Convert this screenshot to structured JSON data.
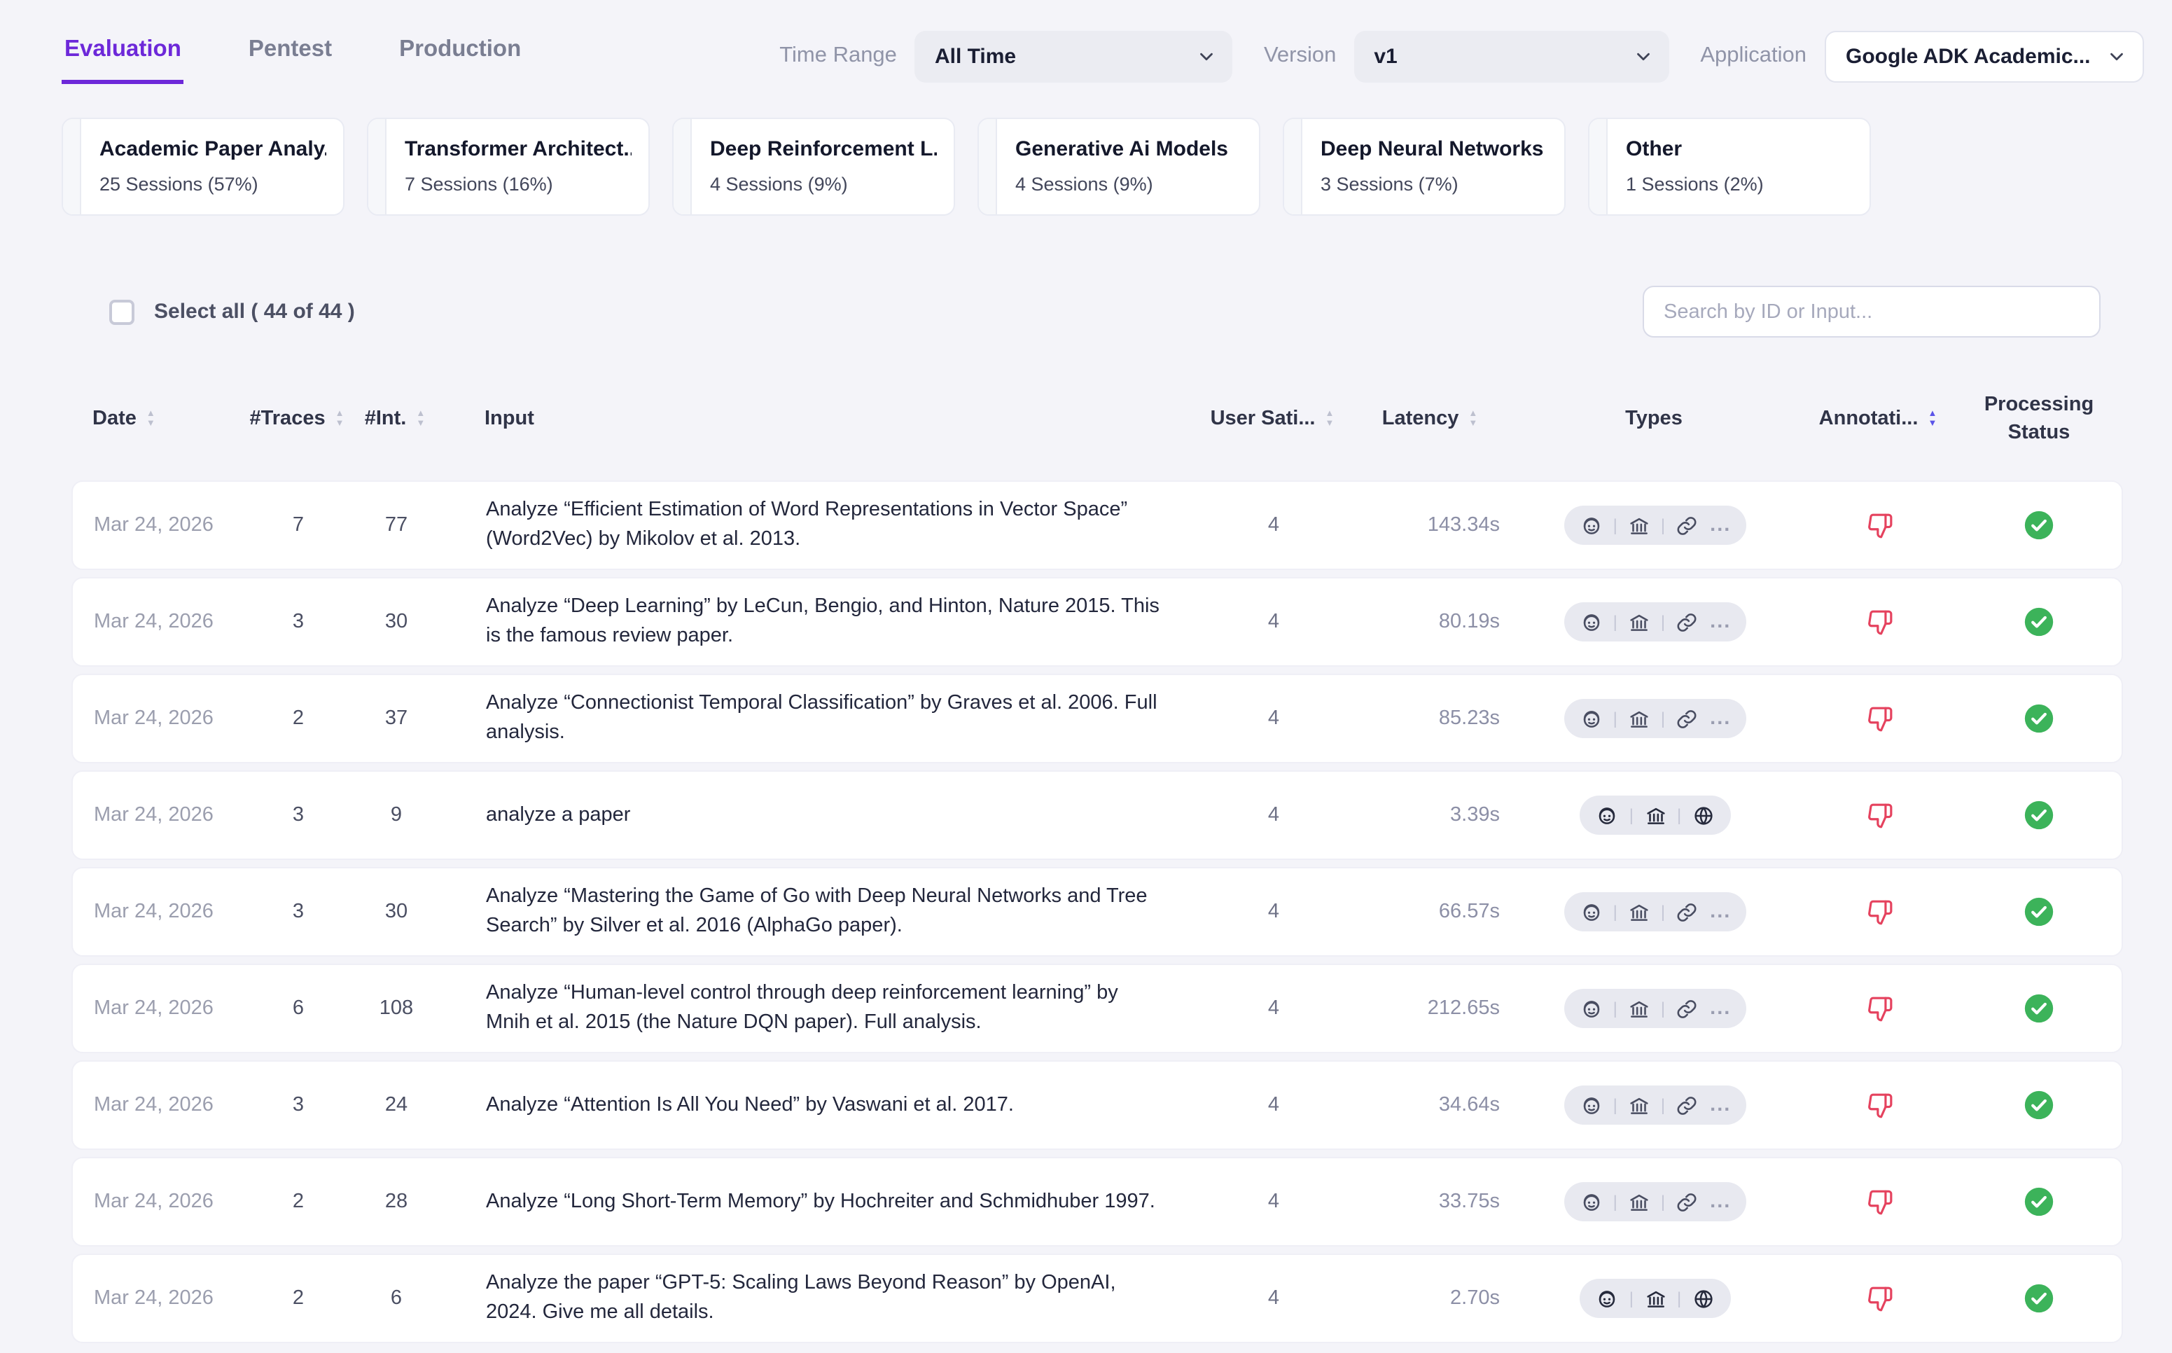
{
  "colors": {
    "accent": "#6d28d9",
    "success": "#3cb35a",
    "danger": "#e5425e",
    "pill_bg": "#e8e9f0"
  },
  "tabs": [
    {
      "label": "Evaluation",
      "active": true
    },
    {
      "label": "Pentest",
      "active": false
    },
    {
      "label": "Production",
      "active": false
    }
  ],
  "filters": {
    "time_range": {
      "label": "Time Range",
      "value": "All Time"
    },
    "version": {
      "label": "Version",
      "value": "v1"
    },
    "application": {
      "label": "Application",
      "value": "Google ADK Academic..."
    }
  },
  "category_cards": [
    {
      "title": "Academic Paper Analy...",
      "subtitle": "25 Sessions (57%)"
    },
    {
      "title": "Transformer Architect...",
      "subtitle": "7 Sessions (16%)"
    },
    {
      "title": "Deep Reinforcement L...",
      "subtitle": "4 Sessions (9%)"
    },
    {
      "title": "Generative Ai Models",
      "subtitle": "4 Sessions (9%)"
    },
    {
      "title": "Deep Neural Networks",
      "subtitle": "3 Sessions (7%)"
    },
    {
      "title": "Other",
      "subtitle": "1 Sessions (2%)"
    }
  ],
  "controls": {
    "select_all_label": "Select all ( 44 of 44 )",
    "select_all_checked": false,
    "search_placeholder": "Search by ID or Input..."
  },
  "table": {
    "columns": [
      {
        "label": "Date",
        "sortable": true,
        "sort_active": false
      },
      {
        "label": "#Traces",
        "sortable": true,
        "sort_active": false
      },
      {
        "label": "#Int.",
        "sortable": true,
        "sort_active": false
      },
      {
        "label": "Input",
        "sortable": false,
        "sort_active": false
      },
      {
        "label": "User Sati...",
        "sortable": true,
        "sort_active": false
      },
      {
        "label": "Latency",
        "sortable": true,
        "sort_active": false
      },
      {
        "label": "Types",
        "sortable": false,
        "sort_active": false
      },
      {
        "label": "Annotati...",
        "sortable": true,
        "sort_active": true
      },
      {
        "label": "Processing Status",
        "sortable": false,
        "sort_active": false
      }
    ],
    "rows": [
      {
        "date": "Mar 24, 2026",
        "traces": "7",
        "interactions": "77",
        "input": "Analyze “Efficient Estimation of Word Representations in Vector Space” (Word2Vec) by Mikolov et al. 2013.",
        "user_satisfaction": "4",
        "latency": "143.34s",
        "types": [
          "agent",
          "bank",
          "link",
          "more"
        ],
        "annotation": "thumbs-down",
        "status": "success"
      },
      {
        "date": "Mar 24, 2026",
        "traces": "3",
        "interactions": "30",
        "input": "Analyze “Deep Learning” by LeCun, Bengio, and Hinton, Nature 2015. This is the famous review paper.",
        "user_satisfaction": "4",
        "latency": "80.19s",
        "types": [
          "agent",
          "bank",
          "link",
          "more"
        ],
        "annotation": "thumbs-down",
        "status": "success"
      },
      {
        "date": "Mar 24, 2026",
        "traces": "2",
        "interactions": "37",
        "input": "Analyze “Connectionist Temporal Classification” by Graves et al. 2006. Full analysis.",
        "user_satisfaction": "4",
        "latency": "85.23s",
        "types": [
          "agent",
          "bank",
          "link",
          "more"
        ],
        "annotation": "thumbs-down",
        "status": "success"
      },
      {
        "date": "Mar 24, 2026",
        "traces": "3",
        "interactions": "9",
        "input": "analyze a paper",
        "user_satisfaction": "4",
        "latency": "3.39s",
        "types": [
          "agent",
          "bank",
          "globe"
        ],
        "annotation": "thumbs-down",
        "status": "success"
      },
      {
        "date": "Mar 24, 2026",
        "traces": "3",
        "interactions": "30",
        "input": "Analyze “Mastering the Game of Go with Deep Neural Networks and Tree Search” by Silver et al. 2016 (AlphaGo paper).",
        "user_satisfaction": "4",
        "latency": "66.57s",
        "types": [
          "agent",
          "bank",
          "link",
          "more"
        ],
        "annotation": "thumbs-down",
        "status": "success"
      },
      {
        "date": "Mar 24, 2026",
        "traces": "6",
        "interactions": "108",
        "input": "Analyze “Human-level control through deep reinforcement learning” by Mnih et al. 2015 (the Nature DQN paper). Full analysis.",
        "user_satisfaction": "4",
        "latency": "212.65s",
        "types": [
          "agent",
          "bank",
          "link",
          "more"
        ],
        "annotation": "thumbs-down",
        "status": "success"
      },
      {
        "date": "Mar 24, 2026",
        "traces": "3",
        "interactions": "24",
        "input": "Analyze “Attention Is All You Need” by Vaswani et al. 2017.",
        "user_satisfaction": "4",
        "latency": "34.64s",
        "types": [
          "agent",
          "bank",
          "link",
          "more"
        ],
        "annotation": "thumbs-down",
        "status": "success"
      },
      {
        "date": "Mar 24, 2026",
        "traces": "2",
        "interactions": "28",
        "input": "Analyze “Long Short-Term Memory” by Hochreiter and Schmidhuber 1997.",
        "user_satisfaction": "4",
        "latency": "33.75s",
        "types": [
          "agent",
          "bank",
          "link",
          "more"
        ],
        "annotation": "thumbs-down",
        "status": "success"
      },
      {
        "date": "Mar 24, 2026",
        "traces": "2",
        "interactions": "6",
        "input": "Analyze the paper “GPT-5: Scaling Laws Beyond Reason” by OpenAI, 2024. Give me all details.",
        "user_satisfaction": "4",
        "latency": "2.70s",
        "types": [
          "agent",
          "bank",
          "globe"
        ],
        "annotation": "thumbs-down",
        "status": "success"
      }
    ]
  }
}
